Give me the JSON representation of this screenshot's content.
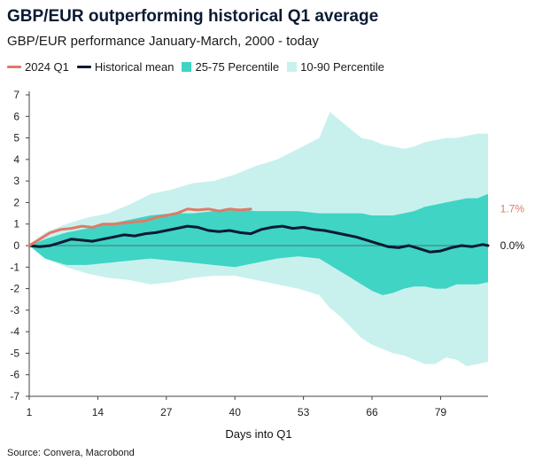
{
  "header": {
    "title": "GBP/EUR outperforming historical Q1 average",
    "subtitle": "GBP/EUR performance January-March, 2000 - today"
  },
  "legend": [
    {
      "label": "2024 Q1",
      "kind": "line",
      "color": "#e07a67"
    },
    {
      "label": "Historical mean",
      "kind": "line",
      "color": "#0b1a33"
    },
    {
      "label": "25-75 Percentile",
      "kind": "box",
      "color": "#3fd4c4"
    },
    {
      "label": "10-90 Percentile",
      "kind": "box",
      "color": "#c8f1ee"
    }
  ],
  "footer": {
    "source": "Source: Convera, Macrobond"
  },
  "chart_data": {
    "type": "area",
    "title": "GBP/EUR outperforming historical Q1 average",
    "xlabel": "Days into Q1",
    "ylabel": "",
    "xlim": [
      1,
      88
    ],
    "ylim": [
      -7,
      7
    ],
    "xticks": [
      1,
      14,
      27,
      40,
      53,
      66,
      79
    ],
    "yticks": [
      -7,
      -6,
      -5,
      -4,
      -3,
      -2,
      -1,
      0,
      1,
      2,
      3,
      4,
      5,
      6,
      7
    ],
    "end_labels": [
      {
        "text": "1.7%",
        "y": 1.7,
        "color": "#e07a67"
      },
      {
        "text": "0.0%",
        "y": 0.0,
        "color": "#111111"
      }
    ],
    "series": [
      {
        "name": "10-90 Percentile",
        "kind": "band",
        "color": "#c8f1ee",
        "x": [
          1,
          4,
          8,
          12,
          16,
          20,
          24,
          28,
          32,
          36,
          40,
          44,
          48,
          52,
          56,
          58,
          60,
          62,
          64,
          66,
          68,
          70,
          72,
          74,
          76,
          78,
          80,
          82,
          84,
          86,
          88
        ],
        "upper": [
          0,
          0.6,
          1.0,
          1.3,
          1.5,
          1.9,
          2.4,
          2.6,
          2.9,
          3.0,
          3.3,
          3.7,
          4.0,
          4.5,
          5.0,
          6.2,
          5.8,
          5.4,
          5.0,
          4.9,
          4.7,
          4.6,
          4.5,
          4.6,
          4.8,
          4.9,
          5.0,
          5.0,
          5.1,
          5.2,
          5.2
        ],
        "lower": [
          0,
          -0.6,
          -1.0,
          -1.3,
          -1.5,
          -1.6,
          -1.8,
          -1.7,
          -1.5,
          -1.4,
          -1.4,
          -1.6,
          -1.8,
          -2.0,
          -2.3,
          -2.9,
          -3.3,
          -3.8,
          -4.3,
          -4.6,
          -4.8,
          -5.0,
          -5.1,
          -5.3,
          -5.5,
          -5.5,
          -5.2,
          -5.3,
          -5.6,
          -5.5,
          -5.4
        ]
      },
      {
        "name": "25-75 Percentile",
        "kind": "band",
        "color": "#3fd4c4",
        "x": [
          1,
          4,
          8,
          12,
          16,
          20,
          24,
          28,
          32,
          36,
          40,
          44,
          48,
          52,
          56,
          58,
          60,
          62,
          64,
          66,
          68,
          70,
          72,
          74,
          76,
          78,
          80,
          82,
          84,
          86,
          88
        ],
        "upper": [
          0,
          0.3,
          0.6,
          0.8,
          1.0,
          1.2,
          1.4,
          1.5,
          1.5,
          1.6,
          1.7,
          1.6,
          1.6,
          1.6,
          1.5,
          1.5,
          1.5,
          1.5,
          1.5,
          1.4,
          1.4,
          1.4,
          1.5,
          1.6,
          1.8,
          1.9,
          2.0,
          2.1,
          2.2,
          2.2,
          2.4
        ],
        "lower": [
          0,
          -0.6,
          -0.9,
          -0.9,
          -0.8,
          -0.7,
          -0.6,
          -0.7,
          -0.8,
          -0.9,
          -1.0,
          -0.8,
          -0.6,
          -0.5,
          -0.6,
          -0.9,
          -1.2,
          -1.5,
          -1.8,
          -2.1,
          -2.3,
          -2.2,
          -2.0,
          -1.9,
          -1.9,
          -2.0,
          -2.0,
          -1.8,
          -1.8,
          -1.8,
          -1.7
        ]
      },
      {
        "name": "Historical mean",
        "kind": "line",
        "color": "#0b1a33",
        "x": [
          1,
          3,
          5,
          7,
          9,
          11,
          13,
          15,
          17,
          19,
          21,
          23,
          25,
          27,
          29,
          31,
          33,
          35,
          37,
          39,
          41,
          43,
          45,
          47,
          49,
          51,
          53,
          55,
          57,
          59,
          61,
          63,
          65,
          67,
          69,
          71,
          73,
          75,
          77,
          79,
          81,
          83,
          85,
          87,
          88
        ],
        "y": [
          0.0,
          -0.05,
          0.0,
          0.15,
          0.3,
          0.25,
          0.2,
          0.3,
          0.4,
          0.5,
          0.45,
          0.55,
          0.6,
          0.7,
          0.8,
          0.9,
          0.85,
          0.7,
          0.65,
          0.7,
          0.6,
          0.55,
          0.75,
          0.85,
          0.9,
          0.8,
          0.85,
          0.75,
          0.7,
          0.6,
          0.5,
          0.4,
          0.25,
          0.1,
          -0.05,
          -0.1,
          0.0,
          -0.15,
          -0.3,
          -0.25,
          -0.1,
          0.0,
          -0.05,
          0.05,
          0.0
        ]
      },
      {
        "name": "2024 Q1",
        "kind": "line",
        "color": "#e07a67",
        "x": [
          1,
          3,
          5,
          7,
          9,
          11,
          13,
          15,
          17,
          19,
          21,
          23,
          25,
          27,
          29,
          31,
          33,
          35,
          37,
          39,
          41,
          43
        ],
        "y": [
          0.0,
          0.3,
          0.6,
          0.75,
          0.8,
          0.9,
          0.85,
          1.0,
          1.0,
          1.05,
          1.1,
          1.15,
          1.3,
          1.4,
          1.5,
          1.7,
          1.65,
          1.7,
          1.6,
          1.7,
          1.65,
          1.7
        ]
      }
    ]
  }
}
